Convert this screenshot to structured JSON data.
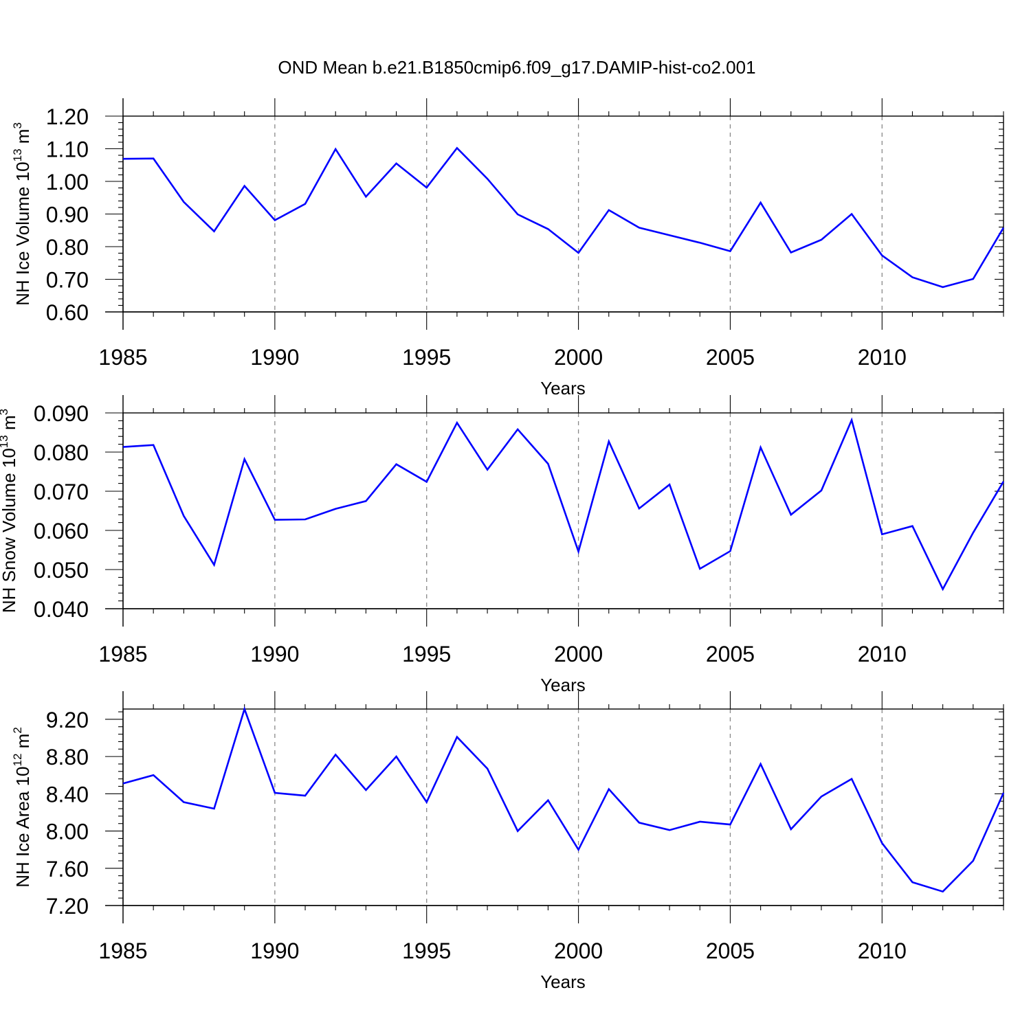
{
  "figure": {
    "title": "OND Mean b.e21.B1850cmip6.f09_g17.DAMIP-hist-co2.001",
    "line_color": "#0000ff",
    "grid_color": "#888888"
  },
  "chart_data": [
    {
      "type": "line",
      "ylabel": "NH Ice Volume 10",
      "ylabel_sup": "13",
      "ylabel_unit": " m",
      "ylabel_unit_sup": "3",
      "xlabel": "Years",
      "xlim": [
        1985,
        2014
      ],
      "ylim": [
        0.6,
        1.2
      ],
      "xticks": [
        1985,
        1990,
        1995,
        2000,
        2005,
        2010
      ],
      "xtick_labels": [
        "1985",
        "1990",
        "1995",
        "2000",
        "2005",
        "2010"
      ],
      "yticks": [
        0.6,
        0.7,
        0.8,
        0.9,
        1.0,
        1.1,
        1.2
      ],
      "ytick_labels": [
        "0.60",
        "0.70",
        "0.80",
        "0.90",
        "1.00",
        "1.10",
        "1.20"
      ],
      "yminor_step": 0.02,
      "xgrid_dashed": true,
      "x": [
        1985,
        1986,
        1987,
        1988,
        1989,
        1990,
        1991,
        1992,
        1993,
        1994,
        1995,
        1996,
        1997,
        1998,
        1999,
        2000,
        2001,
        2002,
        2003,
        2004,
        2005,
        2006,
        2007,
        2008,
        2009,
        2010,
        2011,
        2012,
        2013,
        2014
      ],
      "series": [
        {
          "values": [
            1.069,
            1.07,
            0.937,
            0.847,
            0.986,
            0.881,
            0.931,
            1.099,
            0.953,
            1.055,
            0.981,
            1.102,
            1.008,
            0.899,
            0.854,
            0.781,
            0.912,
            0.858,
            0.835,
            0.812,
            0.786,
            0.935,
            0.782,
            0.821,
            0.9,
            0.773,
            0.706,
            0.676,
            0.701,
            0.858
          ]
        }
      ]
    },
    {
      "type": "line",
      "ylabel": "NH Snow Volume 10",
      "ylabel_sup": "13",
      "ylabel_unit": " m",
      "ylabel_unit_sup": "3",
      "xlabel": "Years",
      "xlim": [
        1985,
        2014
      ],
      "ylim": [
        0.04,
        0.09
      ],
      "xticks": [
        1985,
        1990,
        1995,
        2000,
        2005,
        2010
      ],
      "xtick_labels": [
        "1985",
        "1990",
        "1995",
        "2000",
        "2005",
        "2010"
      ],
      "yticks": [
        0.04,
        0.05,
        0.06,
        0.07,
        0.08,
        0.09
      ],
      "ytick_labels": [
        "0.040",
        "0.050",
        "0.060",
        "0.070",
        "0.080",
        "0.090"
      ],
      "yminor_step": 0.002,
      "xgrid_dashed": true,
      "x": [
        1985,
        1986,
        1987,
        1988,
        1989,
        1990,
        1991,
        1992,
        1993,
        1994,
        1995,
        1996,
        1997,
        1998,
        1999,
        2000,
        2001,
        2002,
        2003,
        2004,
        2005,
        2006,
        2007,
        2008,
        2009,
        2010,
        2011,
        2012,
        2013,
        2014
      ],
      "series": [
        {
          "values": [
            0.0813,
            0.0818,
            0.0637,
            0.0512,
            0.0782,
            0.0627,
            0.0628,
            0.0655,
            0.0675,
            0.0769,
            0.0724,
            0.0875,
            0.0755,
            0.0858,
            0.077,
            0.0546,
            0.0827,
            0.0656,
            0.0717,
            0.0502,
            0.0547,
            0.0812,
            0.064,
            0.0702,
            0.0882,
            0.059,
            0.0611,
            0.045,
            0.0594,
            0.0725
          ]
        }
      ]
    },
    {
      "type": "line",
      "ylabel": "NH Ice Area 10",
      "ylabel_sup": "12",
      "ylabel_unit": " m",
      "ylabel_unit_sup": "2",
      "xlabel": "Years",
      "xlim": [
        1985,
        2014
      ],
      "ylim": [
        7.2,
        9.31
      ],
      "xticks": [
        1985,
        1990,
        1995,
        2000,
        2005,
        2010
      ],
      "xtick_labels": [
        "1985",
        "1990",
        "1995",
        "2000",
        "2005",
        "2010"
      ],
      "yticks": [
        7.2,
        7.6,
        8.0,
        8.4,
        8.8,
        9.2
      ],
      "ytick_labels": [
        "7.20",
        "7.60",
        "8.00",
        "8.40",
        "8.80",
        "9.20"
      ],
      "yminor_step": 0.08,
      "xgrid_dashed": true,
      "x": [
        1985,
        1986,
        1987,
        1988,
        1989,
        1990,
        1991,
        1992,
        1993,
        1994,
        1995,
        1996,
        1997,
        1998,
        1999,
        2000,
        2001,
        2002,
        2003,
        2004,
        2005,
        2006,
        2007,
        2008,
        2009,
        2010,
        2011,
        2012,
        2013,
        2014
      ],
      "series": [
        {
          "values": [
            8.51,
            8.6,
            8.31,
            8.24,
            9.31,
            8.41,
            8.38,
            8.82,
            8.44,
            8.8,
            8.31,
            9.01,
            8.67,
            8.0,
            8.33,
            7.8,
            8.45,
            8.09,
            8.01,
            8.1,
            8.07,
            8.72,
            8.02,
            8.37,
            8.56,
            7.87,
            7.45,
            7.35,
            7.68,
            8.41
          ]
        }
      ]
    }
  ]
}
